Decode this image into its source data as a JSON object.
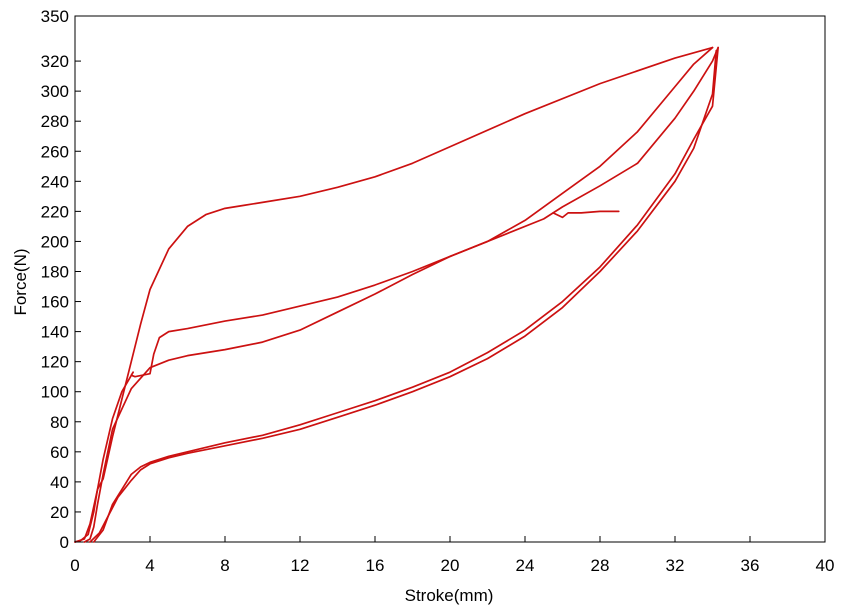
{
  "chart_data": {
    "type": "line",
    "title": "",
    "xlabel": "Stroke(mm)",
    "ylabel": "Force(N)",
    "xlim": [
      0,
      40
    ],
    "ylim": [
      0,
      350
    ],
    "xticks": [
      0,
      4,
      8,
      12,
      16,
      20,
      24,
      28,
      32,
      36,
      40
    ],
    "yticks": [
      0,
      20,
      40,
      60,
      80,
      100,
      120,
      140,
      160,
      180,
      200,
      220,
      240,
      260,
      280,
      300,
      320,
      350
    ],
    "grid": false,
    "legend": "none",
    "line_color": "#cc1111",
    "series": [
      {
        "points": [
          [
            0,
            0
          ],
          [
            0.5,
            2
          ],
          [
            0.8,
            12
          ],
          [
            1.2,
            35
          ],
          [
            1.5,
            42
          ],
          [
            2,
            70
          ],
          [
            2.5,
            95
          ],
          [
            3,
            120
          ],
          [
            3.5,
            145
          ],
          [
            4,
            168
          ],
          [
            5,
            195
          ],
          [
            6,
            210
          ],
          [
            7,
            218
          ],
          [
            8,
            222
          ],
          [
            9,
            224
          ],
          [
            10,
            226
          ],
          [
            12,
            230
          ],
          [
            14,
            236
          ],
          [
            16,
            243
          ],
          [
            18,
            252
          ],
          [
            20,
            263
          ],
          [
            24,
            285
          ],
          [
            28,
            305
          ],
          [
            32,
            322
          ],
          [
            34,
            329
          ]
        ]
      },
      {
        "points": [
          [
            34,
            329
          ],
          [
            33,
            318
          ],
          [
            32,
            303
          ],
          [
            30,
            273
          ],
          [
            28,
            250
          ],
          [
            26,
            232
          ],
          [
            24,
            214
          ],
          [
            22,
            200
          ],
          [
            20,
            190
          ],
          [
            18,
            180
          ],
          [
            16,
            171
          ],
          [
            14,
            163
          ],
          [
            12,
            157
          ],
          [
            10,
            151
          ],
          [
            8,
            147
          ],
          [
            6,
            142
          ],
          [
            5,
            140
          ],
          [
            4.5,
            136
          ],
          [
            4.2,
            125
          ],
          [
            4,
            112
          ],
          [
            3.6,
            111
          ],
          [
            3.2,
            110
          ],
          [
            3,
            111
          ],
          [
            3.1,
            113
          ],
          [
            2.5,
            100
          ],
          [
            2,
            82
          ],
          [
            1.5,
            55
          ],
          [
            1.2,
            35
          ],
          [
            1,
            20
          ],
          [
            0.7,
            5
          ],
          [
            0.3,
            1
          ],
          [
            0,
            0
          ]
        ]
      },
      {
        "points": [
          [
            1,
            0
          ],
          [
            1.5,
            8
          ],
          [
            2,
            25
          ],
          [
            2.5,
            35
          ],
          [
            3,
            45
          ],
          [
            3.5,
            50
          ],
          [
            4,
            53
          ],
          [
            5,
            57
          ],
          [
            6,
            60
          ],
          [
            8,
            66
          ],
          [
            10,
            71
          ],
          [
            12,
            78
          ],
          [
            14,
            86
          ],
          [
            16,
            94
          ],
          [
            18,
            103
          ],
          [
            20,
            113
          ],
          [
            22,
            126
          ],
          [
            24,
            141
          ],
          [
            26,
            160
          ],
          [
            28,
            183
          ],
          [
            30,
            211
          ],
          [
            32,
            245
          ],
          [
            33,
            268
          ],
          [
            34,
            290
          ],
          [
            34.3,
            329
          ]
        ]
      },
      {
        "points": [
          [
            34.3,
            329
          ],
          [
            34,
            320
          ],
          [
            33,
            300
          ],
          [
            32,
            282
          ],
          [
            30,
            252
          ],
          [
            28,
            237
          ],
          [
            26,
            223
          ],
          [
            25,
            215
          ],
          [
            23,
            205
          ],
          [
            20,
            190
          ],
          [
            18,
            178
          ],
          [
            16,
            165
          ],
          [
            14,
            153
          ],
          [
            12,
            141
          ],
          [
            10,
            133
          ],
          [
            8,
            128
          ],
          [
            6,
            124
          ],
          [
            5,
            121
          ],
          [
            4,
            116
          ],
          [
            3,
            102
          ],
          [
            2,
            75
          ],
          [
            1.5,
            45
          ],
          [
            1.2,
            25
          ],
          [
            1,
            10
          ],
          [
            0.8,
            2
          ],
          [
            0.5,
            0
          ]
        ]
      },
      {
        "points": [
          [
            0.8,
            0
          ],
          [
            1.3,
            6
          ],
          [
            1.8,
            18
          ],
          [
            2.3,
            30
          ],
          [
            3,
            41
          ],
          [
            3.5,
            48
          ],
          [
            4,
            52
          ],
          [
            5,
            56
          ],
          [
            6,
            59
          ],
          [
            8,
            64
          ],
          [
            10,
            69
          ],
          [
            12,
            75
          ],
          [
            14,
            83
          ],
          [
            16,
            91
          ],
          [
            18,
            100
          ],
          [
            20,
            110
          ],
          [
            22,
            122
          ],
          [
            24,
            137
          ],
          [
            26,
            156
          ],
          [
            28,
            180
          ],
          [
            30,
            207
          ],
          [
            32,
            240
          ],
          [
            33,
            262
          ],
          [
            34,
            298
          ],
          [
            34.2,
            327
          ]
        ]
      },
      {
        "points": [
          [
            25.5,
            219
          ],
          [
            26,
            216
          ],
          [
            26.3,
            219
          ],
          [
            27,
            219
          ],
          [
            28,
            220
          ],
          [
            29,
            220
          ]
        ]
      }
    ]
  }
}
